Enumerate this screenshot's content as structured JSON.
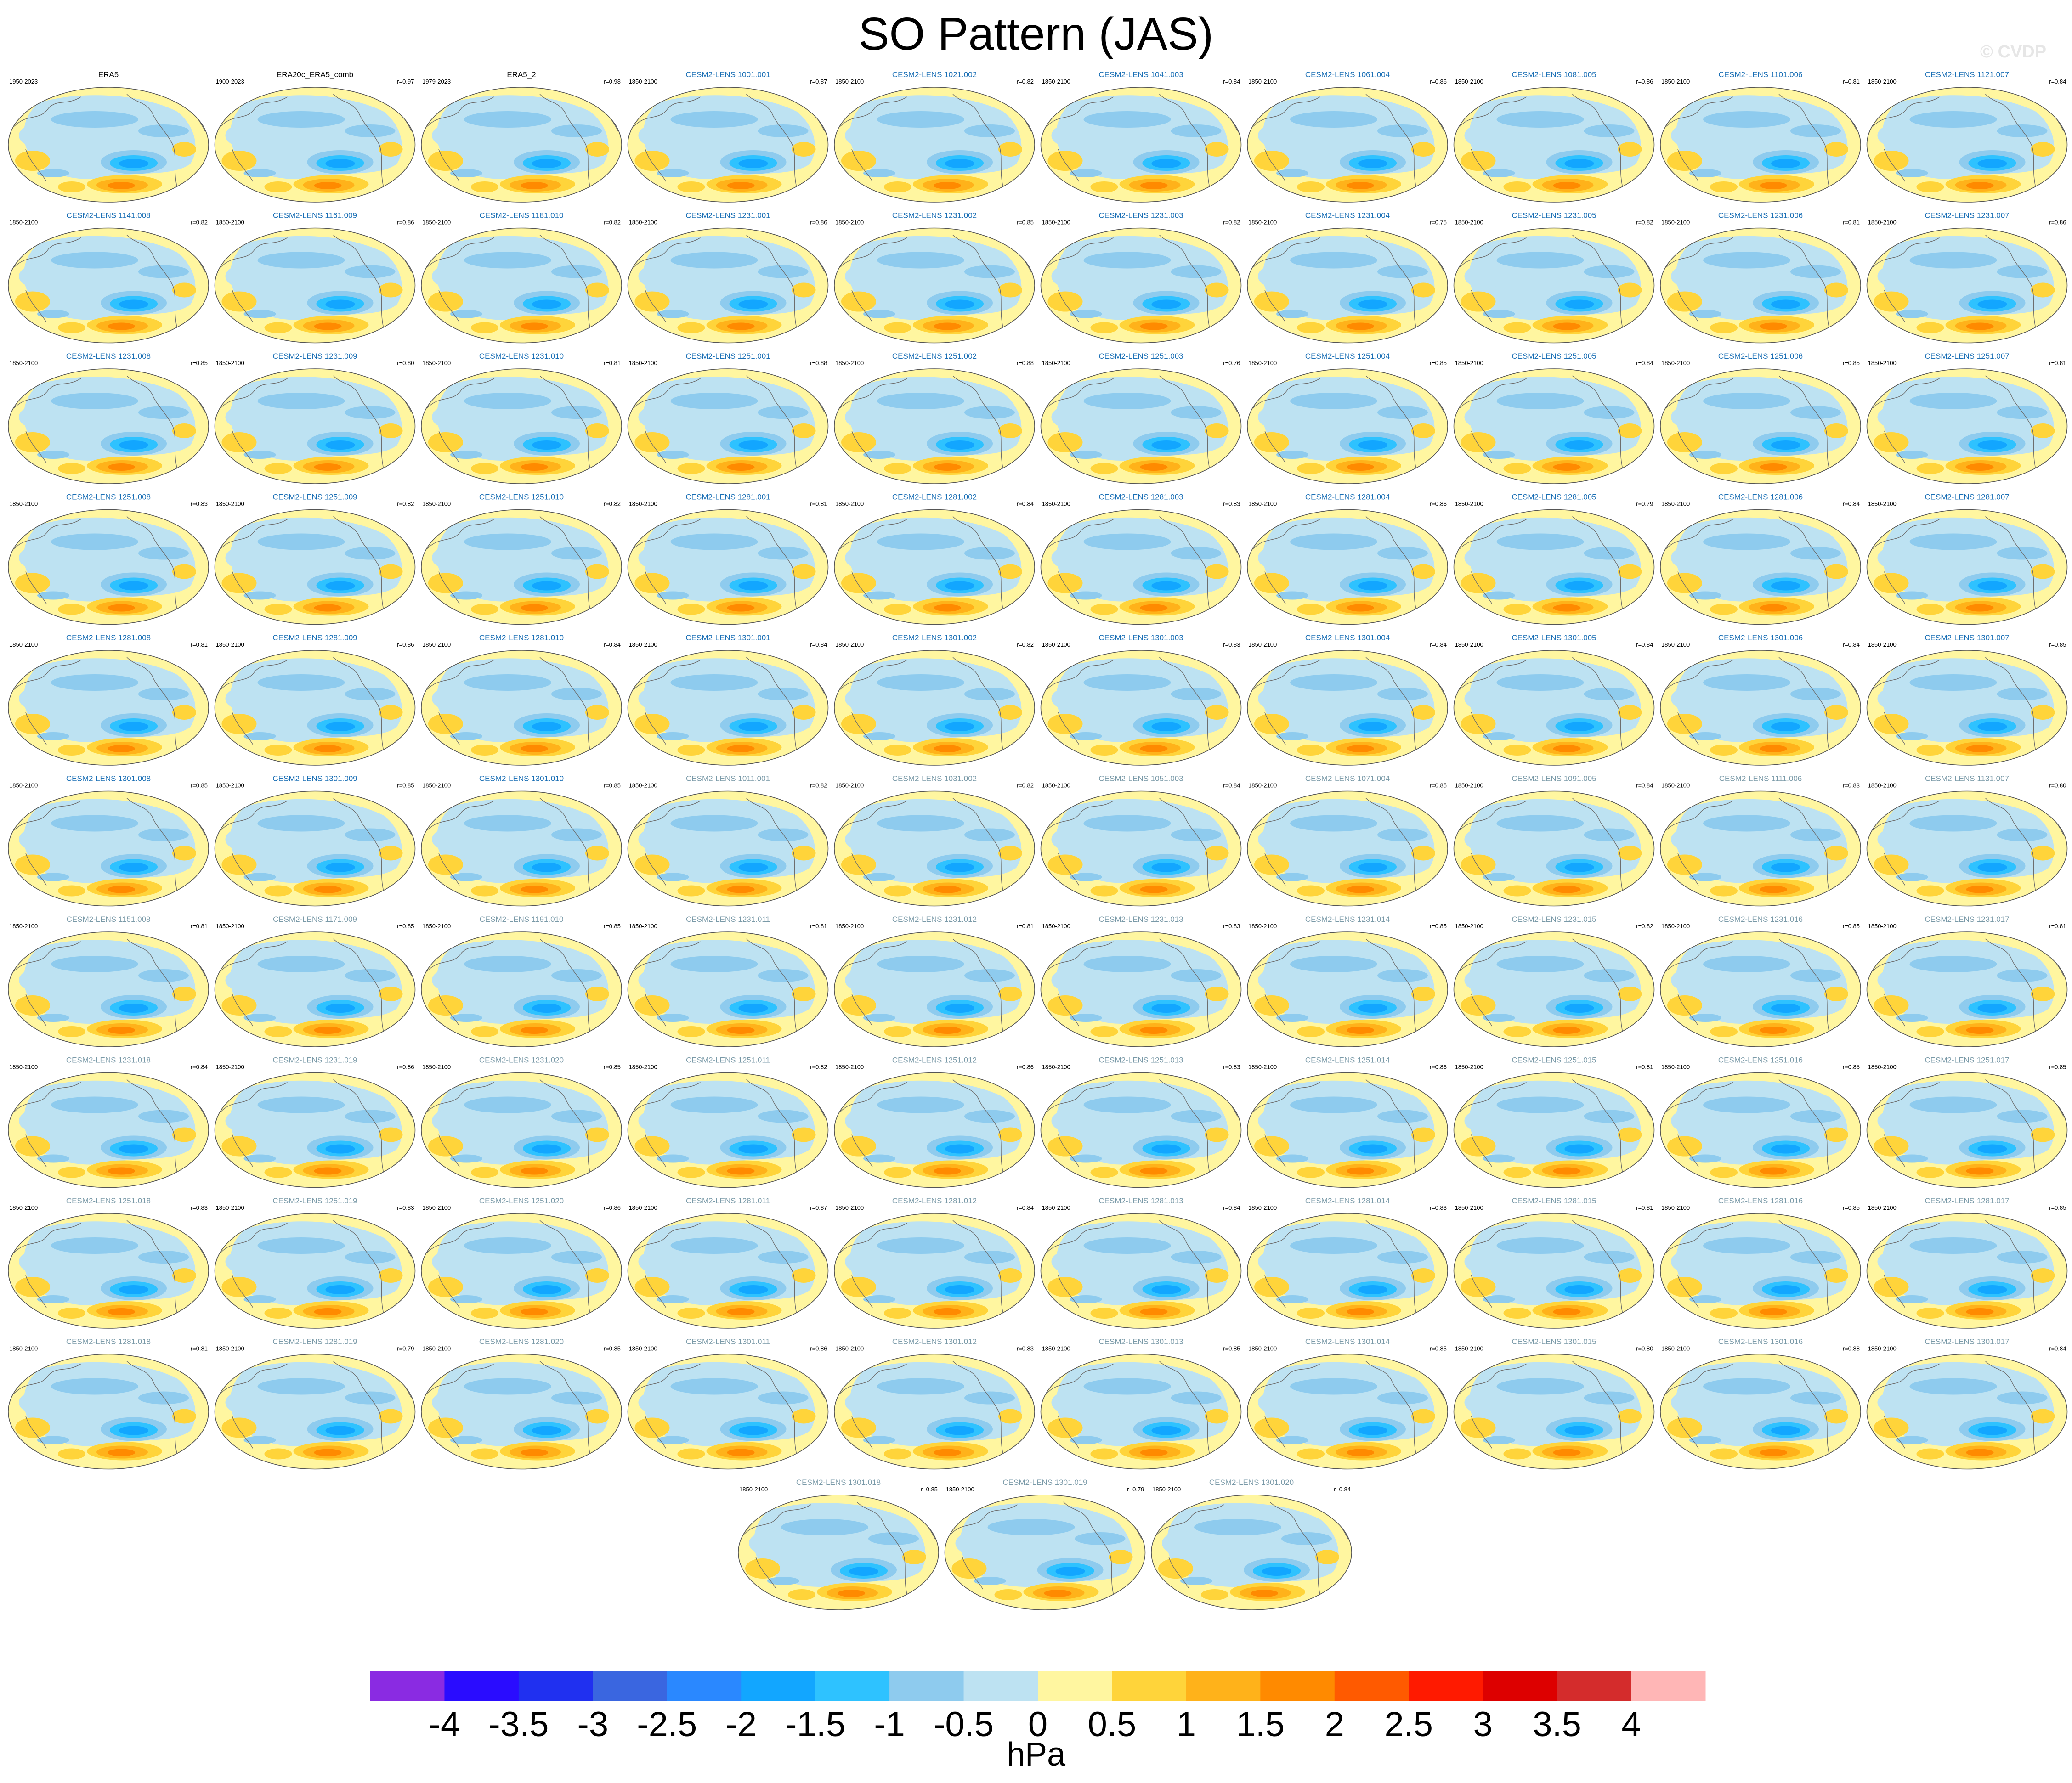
{
  "title": "SO Pattern (JAS)",
  "watermark": "© CVDP",
  "chart_data": {
    "type": "heatmap",
    "title": "SO Pattern (JAS)",
    "description_units": "hPa",
    "colorbar": {
      "units": "hPa",
      "ticks": [
        "-4",
        "-3.5",
        "-3",
        "-2.5",
        "-2",
        "-1.5",
        "-1",
        "-0.5",
        "0",
        "0.5",
        "1",
        "1.5",
        "2",
        "2.5",
        "3",
        "3.5",
        "4"
      ],
      "colors": [
        "#8a2be2",
        "#2a0cff",
        "#2030f0",
        "#3a66e0",
        "#2a88ff",
        "#12a6ff",
        "#2ec2ff",
        "#8ecbee",
        "#bde2f2",
        "#fff6a0",
        "#ffd43a",
        "#ffb21a",
        "#ff8a00",
        "#ff5a00",
        "#ff1a00",
        "#dd0000",
        "#d42c2c",
        "#ffb6b6"
      ]
    },
    "panels": [
      {
        "left": "1950-2023",
        "center": "ERA5",
        "right": "",
        "label_color": "#000000"
      },
      {
        "left": "1900-2023",
        "center": "ERA20c_ERA5_comb",
        "right": "r=0.97",
        "label_color": "#000000"
      },
      {
        "left": "1979-2023",
        "center": "ERA5_2",
        "right": "r=0.98",
        "label_color": "#000000"
      },
      {
        "left": "1850-2100",
        "center": "CESM2-LENS 1001.001",
        "right": "r=0.87",
        "label_color": "#1a6fb5"
      },
      {
        "left": "1850-2100",
        "center": "CESM2-LENS 1021.002",
        "right": "r=0.82",
        "label_color": "#1a6fb5"
      },
      {
        "left": "1850-2100",
        "center": "CESM2-LENS 1041.003",
        "right": "r=0.84",
        "label_color": "#1a6fb5"
      },
      {
        "left": "1850-2100",
        "center": "CESM2-LENS 1061.004",
        "right": "r=0.86",
        "label_color": "#1a6fb5"
      },
      {
        "left": "1850-2100",
        "center": "CESM2-LENS 1081.005",
        "right": "r=0.86",
        "label_color": "#1a6fb5"
      },
      {
        "left": "1850-2100",
        "center": "CESM2-LENS 1101.006",
        "right": "r=0.81",
        "label_color": "#1a6fb5"
      },
      {
        "left": "1850-2100",
        "center": "CESM2-LENS 1121.007",
        "right": "r=0.84",
        "label_color": "#1a6fb5"
      },
      {
        "left": "1850-2100",
        "center": "CESM2-LENS 1141.008",
        "right": "r=0.82",
        "label_color": "#1a6fb5"
      },
      {
        "left": "1850-2100",
        "center": "CESM2-LENS 1161.009",
        "right": "r=0.86",
        "label_color": "#1a6fb5"
      },
      {
        "left": "1850-2100",
        "center": "CESM2-LENS 1181.010",
        "right": "r=0.82",
        "label_color": "#1a6fb5"
      },
      {
        "left": "1850-2100",
        "center": "CESM2-LENS 1231.001",
        "right": "r=0.86",
        "label_color": "#1a6fb5"
      },
      {
        "left": "1850-2100",
        "center": "CESM2-LENS 1231.002",
        "right": "r=0.85",
        "label_color": "#1a6fb5"
      },
      {
        "left": "1850-2100",
        "center": "CESM2-LENS 1231.003",
        "right": "r=0.82",
        "label_color": "#1a6fb5"
      },
      {
        "left": "1850-2100",
        "center": "CESM2-LENS 1231.004",
        "right": "r=0.75",
        "label_color": "#1a6fb5"
      },
      {
        "left": "1850-2100",
        "center": "CESM2-LENS 1231.005",
        "right": "r=0.82",
        "label_color": "#1a6fb5"
      },
      {
        "left": "1850-2100",
        "center": "CESM2-LENS 1231.006",
        "right": "r=0.81",
        "label_color": "#1a6fb5"
      },
      {
        "left": "1850-2100",
        "center": "CESM2-LENS 1231.007",
        "right": "r=0.86",
        "label_color": "#1a6fb5"
      },
      {
        "left": "1850-2100",
        "center": "CESM2-LENS 1231.008",
        "right": "r=0.85",
        "label_color": "#1a6fb5"
      },
      {
        "left": "1850-2100",
        "center": "CESM2-LENS 1231.009",
        "right": "r=0.80",
        "label_color": "#1a6fb5"
      },
      {
        "left": "1850-2100",
        "center": "CESM2-LENS 1231.010",
        "right": "r=0.81",
        "label_color": "#1a6fb5"
      },
      {
        "left": "1850-2100",
        "center": "CESM2-LENS 1251.001",
        "right": "r=0.88",
        "label_color": "#1a6fb5"
      },
      {
        "left": "1850-2100",
        "center": "CESM2-LENS 1251.002",
        "right": "r=0.88",
        "label_color": "#1a6fb5"
      },
      {
        "left": "1850-2100",
        "center": "CESM2-LENS 1251.003",
        "right": "r=0.76",
        "label_color": "#1a6fb5"
      },
      {
        "left": "1850-2100",
        "center": "CESM2-LENS 1251.004",
        "right": "r=0.85",
        "label_color": "#1a6fb5"
      },
      {
        "left": "1850-2100",
        "center": "CESM2-LENS 1251.005",
        "right": "r=0.84",
        "label_color": "#1a6fb5"
      },
      {
        "left": "1850-2100",
        "center": "CESM2-LENS 1251.006",
        "right": "r=0.85",
        "label_color": "#1a6fb5"
      },
      {
        "left": "1850-2100",
        "center": "CESM2-LENS 1251.007",
        "right": "r=0.81",
        "label_color": "#1a6fb5"
      },
      {
        "left": "1850-2100",
        "center": "CESM2-LENS 1251.008",
        "right": "r=0.83",
        "label_color": "#1a6fb5"
      },
      {
        "left": "1850-2100",
        "center": "CESM2-LENS 1251.009",
        "right": "r=0.82",
        "label_color": "#1a6fb5"
      },
      {
        "left": "1850-2100",
        "center": "CESM2-LENS 1251.010",
        "right": "r=0.82",
        "label_color": "#1a6fb5"
      },
      {
        "left": "1850-2100",
        "center": "CESM2-LENS 1281.001",
        "right": "r=0.81",
        "label_color": "#1a6fb5"
      },
      {
        "left": "1850-2100",
        "center": "CESM2-LENS 1281.002",
        "right": "r=0.84",
        "label_color": "#1a6fb5"
      },
      {
        "left": "1850-2100",
        "center": "CESM2-LENS 1281.003",
        "right": "r=0.83",
        "label_color": "#1a6fb5"
      },
      {
        "left": "1850-2100",
        "center": "CESM2-LENS 1281.004",
        "right": "r=0.86",
        "label_color": "#1a6fb5"
      },
      {
        "left": "1850-2100",
        "center": "CESM2-LENS 1281.005",
        "right": "r=0.79",
        "label_color": "#1a6fb5"
      },
      {
        "left": "1850-2100",
        "center": "CESM2-LENS 1281.006",
        "right": "r=0.84",
        "label_color": "#1a6fb5"
      },
      {
        "left": "1850-2100",
        "center": "CESM2-LENS 1281.007",
        "right": "",
        "label_color": "#1a6fb5"
      },
      {
        "left": "1850-2100",
        "center": "CESM2-LENS 1281.008",
        "right": "r=0.81",
        "label_color": "#1a6fb5"
      },
      {
        "left": "1850-2100",
        "center": "CESM2-LENS 1281.009",
        "right": "r=0.86",
        "label_color": "#1a6fb5"
      },
      {
        "left": "1850-2100",
        "center": "CESM2-LENS 1281.010",
        "right": "r=0.84",
        "label_color": "#1a6fb5"
      },
      {
        "left": "1850-2100",
        "center": "CESM2-LENS 1301.001",
        "right": "r=0.84",
        "label_color": "#1a6fb5"
      },
      {
        "left": "1850-2100",
        "center": "CESM2-LENS 1301.002",
        "right": "r=0.82",
        "label_color": "#1a6fb5"
      },
      {
        "left": "1850-2100",
        "center": "CESM2-LENS 1301.003",
        "right": "r=0.83",
        "label_color": "#1a6fb5"
      },
      {
        "left": "1850-2100",
        "center": "CESM2-LENS 1301.004",
        "right": "r=0.84",
        "label_color": "#1a6fb5"
      },
      {
        "left": "1850-2100",
        "center": "CESM2-LENS 1301.005",
        "right": "r=0.84",
        "label_color": "#1a6fb5"
      },
      {
        "left": "1850-2100",
        "center": "CESM2-LENS 1301.006",
        "right": "r=0.84",
        "label_color": "#1a6fb5"
      },
      {
        "left": "1850-2100",
        "center": "CESM2-LENS 1301.007",
        "right": "r=0.85",
        "label_color": "#1a6fb5"
      },
      {
        "left": "1850-2100",
        "center": "CESM2-LENS 1301.008",
        "right": "r=0.85",
        "label_color": "#1a6fb5"
      },
      {
        "left": "1850-2100",
        "center": "CESM2-LENS 1301.009",
        "right": "r=0.85",
        "label_color": "#1a6fb5"
      },
      {
        "left": "1850-2100",
        "center": "CESM2-LENS 1301.010",
        "right": "r=0.85",
        "label_color": "#1a6fb5"
      },
      {
        "left": "1850-2100",
        "center": "CESM2-LENS 1011.001",
        "right": "r=0.82",
        "label_color": "#7a9aa8"
      },
      {
        "left": "1850-2100",
        "center": "CESM2-LENS 1031.002",
        "right": "r=0.82",
        "label_color": "#7a9aa8"
      },
      {
        "left": "1850-2100",
        "center": "CESM2-LENS 1051.003",
        "right": "r=0.84",
        "label_color": "#7a9aa8"
      },
      {
        "left": "1850-2100",
        "center": "CESM2-LENS 1071.004",
        "right": "r=0.85",
        "label_color": "#7a9aa8"
      },
      {
        "left": "1850-2100",
        "center": "CESM2-LENS 1091.005",
        "right": "r=0.84",
        "label_color": "#7a9aa8"
      },
      {
        "left": "1850-2100",
        "center": "CESM2-LENS 1111.006",
        "right": "r=0.83",
        "label_color": "#7a9aa8"
      },
      {
        "left": "1850-2100",
        "center": "CESM2-LENS 1131.007",
        "right": "r=0.80",
        "label_color": "#7a9aa8"
      },
      {
        "left": "1850-2100",
        "center": "CESM2-LENS 1151.008",
        "right": "r=0.81",
        "label_color": "#7a9aa8"
      },
      {
        "left": "1850-2100",
        "center": "CESM2-LENS 1171.009",
        "right": "r=0.85",
        "label_color": "#7a9aa8"
      },
      {
        "left": "1850-2100",
        "center": "CESM2-LENS 1191.010",
        "right": "r=0.85",
        "label_color": "#7a9aa8"
      },
      {
        "left": "1850-2100",
        "center": "CESM2-LENS 1231.011",
        "right": "r=0.81",
        "label_color": "#7a9aa8"
      },
      {
        "left": "1850-2100",
        "center": "CESM2-LENS 1231.012",
        "right": "r=0.81",
        "label_color": "#7a9aa8"
      },
      {
        "left": "1850-2100",
        "center": "CESM2-LENS 1231.013",
        "right": "r=0.83",
        "label_color": "#7a9aa8"
      },
      {
        "left": "1850-2100",
        "center": "CESM2-LENS 1231.014",
        "right": "r=0.85",
        "label_color": "#7a9aa8"
      },
      {
        "left": "1850-2100",
        "center": "CESM2-LENS 1231.015",
        "right": "r=0.82",
        "label_color": "#7a9aa8"
      },
      {
        "left": "1850-2100",
        "center": "CESM2-LENS 1231.016",
        "right": "r=0.85",
        "label_color": "#7a9aa8"
      },
      {
        "left": "1850-2100",
        "center": "CESM2-LENS 1231.017",
        "right": "r=0.81",
        "label_color": "#7a9aa8"
      },
      {
        "left": "1850-2100",
        "center": "CESM2-LENS 1231.018",
        "right": "r=0.84",
        "label_color": "#7a9aa8"
      },
      {
        "left": "1850-2100",
        "center": "CESM2-LENS 1231.019",
        "right": "r=0.86",
        "label_color": "#7a9aa8"
      },
      {
        "left": "1850-2100",
        "center": "CESM2-LENS 1231.020",
        "right": "r=0.85",
        "label_color": "#7a9aa8"
      },
      {
        "left": "1850-2100",
        "center": "CESM2-LENS 1251.011",
        "right": "r=0.82",
        "label_color": "#7a9aa8"
      },
      {
        "left": "1850-2100",
        "center": "CESM2-LENS 1251.012",
        "right": "r=0.86",
        "label_color": "#7a9aa8"
      },
      {
        "left": "1850-2100",
        "center": "CESM2-LENS 1251.013",
        "right": "r=0.83",
        "label_color": "#7a9aa8"
      },
      {
        "left": "1850-2100",
        "center": "CESM2-LENS 1251.014",
        "right": "r=0.86",
        "label_color": "#7a9aa8"
      },
      {
        "left": "1850-2100",
        "center": "CESM2-LENS 1251.015",
        "right": "r=0.81",
        "label_color": "#7a9aa8"
      },
      {
        "left": "1850-2100",
        "center": "CESM2-LENS 1251.016",
        "right": "r=0.85",
        "label_color": "#7a9aa8"
      },
      {
        "left": "1850-2100",
        "center": "CESM2-LENS 1251.017",
        "right": "r=0.85",
        "label_color": "#7a9aa8"
      },
      {
        "left": "1850-2100",
        "center": "CESM2-LENS 1251.018",
        "right": "r=0.83",
        "label_color": "#7a9aa8"
      },
      {
        "left": "1850-2100",
        "center": "CESM2-LENS 1251.019",
        "right": "r=0.83",
        "label_color": "#7a9aa8"
      },
      {
        "left": "1850-2100",
        "center": "CESM2-LENS 1251.020",
        "right": "r=0.86",
        "label_color": "#7a9aa8"
      },
      {
        "left": "1850-2100",
        "center": "CESM2-LENS 1281.011",
        "right": "r=0.87",
        "label_color": "#7a9aa8"
      },
      {
        "left": "1850-2100",
        "center": "CESM2-LENS 1281.012",
        "right": "r=0.84",
        "label_color": "#7a9aa8"
      },
      {
        "left": "1850-2100",
        "center": "CESM2-LENS 1281.013",
        "right": "r=0.84",
        "label_color": "#7a9aa8"
      },
      {
        "left": "1850-2100",
        "center": "CESM2-LENS 1281.014",
        "right": "r=0.83",
        "label_color": "#7a9aa8"
      },
      {
        "left": "1850-2100",
        "center": "CESM2-LENS 1281.015",
        "right": "r=0.81",
        "label_color": "#7a9aa8"
      },
      {
        "left": "1850-2100",
        "center": "CESM2-LENS 1281.016",
        "right": "r=0.85",
        "label_color": "#7a9aa8"
      },
      {
        "left": "1850-2100",
        "center": "CESM2-LENS 1281.017",
        "right": "r=0.85",
        "label_color": "#7a9aa8"
      },
      {
        "left": "1850-2100",
        "center": "CESM2-LENS 1281.018",
        "right": "r=0.81",
        "label_color": "#7a9aa8"
      },
      {
        "left": "1850-2100",
        "center": "CESM2-LENS 1281.019",
        "right": "r=0.79",
        "label_color": "#7a9aa8"
      },
      {
        "left": "1850-2100",
        "center": "CESM2-LENS 1281.020",
        "right": "r=0.85",
        "label_color": "#7a9aa8"
      },
      {
        "left": "1850-2100",
        "center": "CESM2-LENS 1301.011",
        "right": "r=0.86",
        "label_color": "#7a9aa8"
      },
      {
        "left": "1850-2100",
        "center": "CESM2-LENS 1301.012",
        "right": "r=0.83",
        "label_color": "#7a9aa8"
      },
      {
        "left": "1850-2100",
        "center": "CESM2-LENS 1301.013",
        "right": "r=0.85",
        "label_color": "#7a9aa8"
      },
      {
        "left": "1850-2100",
        "center": "CESM2-LENS 1301.014",
        "right": "r=0.85",
        "label_color": "#7a9aa8"
      },
      {
        "left": "1850-2100",
        "center": "CESM2-LENS 1301.015",
        "right": "r=0.80",
        "label_color": "#7a9aa8"
      },
      {
        "left": "1850-2100",
        "center": "CESM2-LENS 1301.016",
        "right": "r=0.88",
        "label_color": "#7a9aa8"
      },
      {
        "left": "1850-2100",
        "center": "CESM2-LENS 1301.017",
        "right": "r=0.84",
        "label_color": "#7a9aa8"
      },
      {
        "left": "1850-2100",
        "center": "CESM2-LENS 1301.018",
        "right": "r=0.85",
        "label_color": "#7a9aa8"
      },
      {
        "left": "1850-2100",
        "center": "CESM2-LENS 1301.019",
        "right": "r=0.79",
        "label_color": "#7a9aa8"
      },
      {
        "left": "1850-2100",
        "center": "CESM2-LENS 1301.020",
        "right": "r=0.84",
        "label_color": "#7a9aa8"
      }
    ]
  }
}
